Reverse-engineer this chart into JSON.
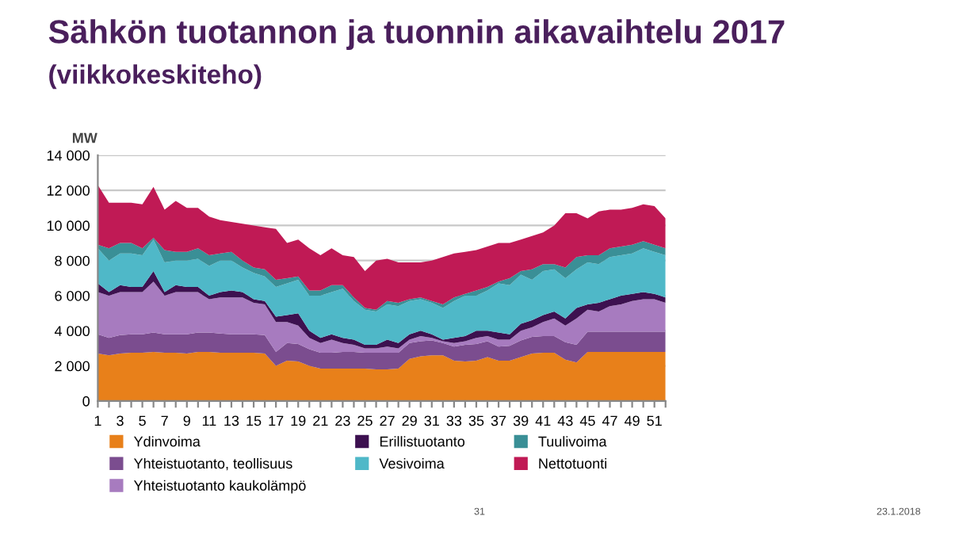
{
  "chart_data": {
    "type": "area",
    "stacked": true,
    "title": "Sähkön tuotannon ja tuonnin aikavaihtelu 2017",
    "subtitle": "(viikkokeskiteho)",
    "ylabel": "MW",
    "categories": [
      "1",
      null,
      "3",
      null,
      "5",
      null,
      "7",
      null,
      "9",
      null,
      "11",
      null,
      "13",
      null,
      "15",
      null,
      "17",
      null,
      "19",
      null,
      "21",
      null,
      "23",
      null,
      "25",
      null,
      "27",
      null,
      "29",
      null,
      "31",
      null,
      "33",
      null,
      "35",
      null,
      "37",
      null,
      "39",
      null,
      "41",
      null,
      "43",
      null,
      "45",
      null,
      "47",
      null,
      "49",
      null,
      "51",
      null
    ],
    "series": [
      {
        "name": "Ydinvoima",
        "color": "#e8801a",
        "values": [
          2700,
          2600,
          2700,
          2750,
          2750,
          2800,
          2750,
          2750,
          2700,
          2800,
          2800,
          2750,
          2750,
          2750,
          2750,
          2700,
          2000,
          2300,
          2250,
          2000,
          1850,
          1850,
          1850,
          1850,
          1850,
          1800,
          1800,
          1850,
          2400,
          2550,
          2600,
          2600,
          2300,
          2250,
          2300,
          2500,
          2300,
          2300,
          2500,
          2700,
          2750,
          2750,
          2350,
          2200,
          2800,
          2800,
          2800,
          2800,
          2800,
          2800,
          2800,
          2800
        ]
      },
      {
        "name": "Yhteistuotanto, teollisuus",
        "color": "#7b4d8f",
        "values": [
          1100,
          1000,
          1050,
          1050,
          1050,
          1100,
          1050,
          1050,
          1100,
          1100,
          1100,
          1100,
          1050,
          1050,
          1050,
          1050,
          800,
          1000,
          1000,
          950,
          900,
          900,
          950,
          950,
          900,
          950,
          950,
          900,
          900,
          850,
          850,
          700,
          800,
          950,
          950,
          900,
          800,
          850,
          950,
          950,
          950,
          950,
          1000,
          1000,
          1150,
          1150,
          1150,
          1150,
          1150,
          1150,
          1150,
          1150
        ]
      },
      {
        "name": "Yhteistuotanto kaukolämpö",
        "color": "#a77bbf",
        "values": [
          2400,
          2400,
          2450,
          2400,
          2400,
          2900,
          2200,
          2400,
          2400,
          2300,
          1900,
          2050,
          2100,
          2100,
          1800,
          1750,
          1700,
          1200,
          1050,
          650,
          550,
          750,
          500,
          400,
          250,
          250,
          350,
          250,
          200,
          300,
          150,
          100,
          200,
          200,
          350,
          300,
          400,
          350,
          550,
          550,
          800,
          1000,
          950,
          1500,
          1250,
          1150,
          1450,
          1550,
          1750,
          1850,
          1850,
          1650
        ]
      },
      {
        "name": "Erillistuotanto",
        "color": "#3d1150",
        "values": [
          500,
          200,
          400,
          300,
          300,
          600,
          200,
          400,
          300,
          300,
          200,
          300,
          400,
          300,
          200,
          200,
          300,
          400,
          700,
          400,
          300,
          300,
          300,
          300,
          200,
          200,
          400,
          300,
          300,
          300,
          200,
          100,
          300,
          300,
          400,
          300,
          400,
          300,
          400,
          400,
          400,
          400,
          400,
          600,
          300,
          500,
          400,
          500,
          400,
          400,
          300,
          300
        ]
      },
      {
        "name": "Vesivoima",
        "color": "#4fb8c8",
        "values": [
          2000,
          1800,
          1800,
          1900,
          1800,
          1800,
          1700,
          1400,
          1500,
          1600,
          1700,
          1800,
          1700,
          1400,
          1500,
          1400,
          1700,
          1800,
          1900,
          2000,
          2400,
          2400,
          2800,
          2200,
          2000,
          1900,
          2000,
          2100,
          1900,
          1800,
          1800,
          1800,
          2100,
          2300,
          2000,
          2300,
          2800,
          2800,
          2800,
          2300,
          2500,
          2400,
          2300,
          2200,
          2400,
          2200,
          2400,
          2300,
          2300,
          2500,
          2400,
          2400
        ]
      },
      {
        "name": "Tuulivoima",
        "color": "#3a8f96",
        "values": [
          200,
          700,
          600,
          600,
          400,
          100,
          700,
          500,
          500,
          600,
          600,
          400,
          500,
          400,
          300,
          400,
          400,
          300,
          200,
          300,
          300,
          400,
          200,
          200,
          100,
          100,
          200,
          200,
          100,
          100,
          100,
          200,
          200,
          100,
          300,
          200,
          100,
          400,
          200,
          600,
          400,
          300,
          600,
          700,
          400,
          500,
          500,
          500,
          500,
          400,
          400,
          400
        ]
      },
      {
        "name": "Nettotuonti",
        "color": "#c01a55",
        "values": [
          3400,
          2600,
          2300,
          2300,
          2500,
          2900,
          2300,
          2900,
          2500,
          2300,
          2200,
          1900,
          1700,
          2100,
          2400,
          2400,
          2900,
          2000,
          2100,
          2400,
          2000,
          2100,
          1700,
          2300,
          2100,
          2800,
          2400,
          2300,
          2100,
          2000,
          2300,
          2700,
          2500,
          2400,
          2300,
          2300,
          2200,
          2000,
          1800,
          1900,
          1800,
          2200,
          3100,
          2500,
          2100,
          2500,
          2200,
          2100,
          2100,
          2100,
          2200,
          1700
        ]
      }
    ],
    "ylim": [
      0,
      14000
    ],
    "yticks": [
      0,
      {
        "value": 2000,
        "label": "2 000"
      },
      {
        "value": 4000,
        "label": "4 000"
      },
      {
        "value": 6000,
        "label": "6 000"
      },
      {
        "value": 8000,
        "label": "8 000"
      },
      {
        "value": 10000,
        "label": "10 000"
      },
      {
        "value": 12000,
        "label": "12 000"
      },
      {
        "value": 14000,
        "label": "14 000"
      }
    ],
    "grid": "y",
    "legend": "bottom",
    "annotations": [
      "31",
      "23.1.2018"
    ]
  }
}
